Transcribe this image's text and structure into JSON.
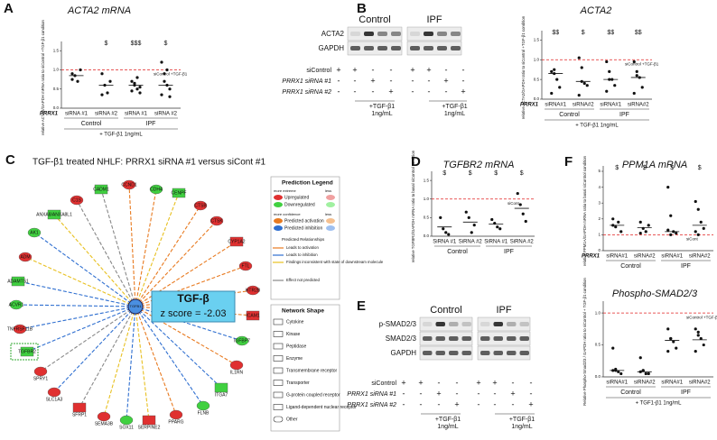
{
  "chart_data": [
    {
      "type": "dot",
      "label": "A",
      "title": "ACTA2 mRNA",
      "ylabel": "relative ACTA2/GAPDH mRNA ratio to siControl +TGF-β1 condition",
      "row_label": "PRRX1",
      "categories": [
        "siRNA #1",
        "siRNA #2",
        "siRNA #1",
        "siRNA #2"
      ],
      "groups": [
        "Control",
        "IPF"
      ],
      "footnote": "+ TGF-β1 1ng/mL",
      "ylim": [
        0,
        1.6
      ],
      "yticks": [
        {
          "value": 0,
          "label": "0.0"
        },
        {
          "value": 0.5,
          "label": "0.5"
        },
        {
          "value": 1,
          "label": "1.0"
        },
        {
          "value": 1.5,
          "label": "1.5"
        }
      ],
      "values": [
        [
          0.9,
          0.85,
          0.7,
          1.0,
          0.75
        ],
        [
          0.9,
          0.6,
          0.4,
          0.7,
          0.35
        ],
        [
          0.7,
          0.6,
          0.5,
          0.55,
          0.45,
          0.65,
          0.8,
          0.4
        ],
        [
          1.2,
          0.9,
          0.6,
          0.5,
          0.35,
          0.7,
          1.0,
          0.3
        ]
      ],
      "medians": [
        0.85,
        0.6,
        0.6,
        0.6
      ],
      "significance": [
        null,
        "$",
        "$$$",
        "$"
      ],
      "ref_line": {
        "value": 1,
        "label": "siControl +TGF-β1",
        "color": "#e02020"
      },
      "color": "#111"
    },
    {
      "type": "dot",
      "title": "ACTA2",
      "ylabel": "relative ACTA2/GAPDH ratio to siControl +TGF-β1 condition",
      "row_label": "PRRX1",
      "categories": [
        "siRNA#1",
        "siRNA#2",
        "siRNA#1",
        "siRNA#2"
      ],
      "groups": [
        "Control",
        "IPF"
      ],
      "footnote": "+ TGF-β1 1ng/mL",
      "ylim": [
        0,
        1.6
      ],
      "yticks": [
        {
          "value": 0,
          "label": "0.0"
        },
        {
          "value": 0.5,
          "label": "0.5"
        },
        {
          "value": 1,
          "label": "1.0"
        },
        {
          "value": 1.5,
          "label": "1.5"
        }
      ],
      "values": [
        [
          0.7,
          0.75,
          0.5,
          0.3,
          0.15,
          0.65
        ],
        [
          1.05,
          0.8,
          0.4,
          0.35,
          0.1,
          0.45
        ],
        [
          0.95,
          0.7,
          0.5,
          0.35,
          0.2,
          0.5
        ],
        [
          0.95,
          0.7,
          0.55,
          0.3,
          0.15,
          0.6
        ]
      ],
      "medians": [
        0.65,
        0.45,
        0.5,
        0.55
      ],
      "significance": [
        "$$",
        "$",
        "$$",
        "$$"
      ],
      "ref_line": {
        "value": 1,
        "label": "siControl +TGF-β1",
        "color": "#e02020"
      },
      "color": "#111"
    },
    {
      "type": "dot",
      "label": "D",
      "title": "TGFBR2 mRNA",
      "ylabel": "relative TGFBR2/GAPDH mRNA ratio to basal siControl condition",
      "categories": [
        "SiRNA #1",
        "SiRNA #2",
        "SiRNA #1",
        "SiRNA #2"
      ],
      "groups": [
        "Control",
        "IPF"
      ],
      "ylim": [
        0,
        1.6
      ],
      "yticks": [
        {
          "value": 0,
          "label": "0.0"
        },
        {
          "value": 0.5,
          "label": "0.5"
        },
        {
          "value": 1,
          "label": "1.0"
        },
        {
          "value": 1.5,
          "label": "1.5"
        }
      ],
      "values": [
        [
          0.5,
          0.2,
          0.1,
          0.05
        ],
        [
          0.65,
          0.5,
          0.1,
          0.3
        ],
        [
          0.45,
          0.35,
          0.25,
          0.2
        ],
        [
          1.15,
          0.85,
          0.6,
          0.4
        ]
      ],
      "medians": [
        0.25,
        0.38,
        0.33,
        0.75
      ],
      "significance": [
        "$",
        "$",
        "$",
        "$"
      ],
      "ref_line": {
        "value": 1,
        "label": "siCont",
        "color": "#e02020"
      },
      "color": "#111"
    },
    {
      "type": "dot",
      "label": "F",
      "title": "PPM1A mRNA",
      "ylabel": "relative PPM1A/GAPDH mRNA ratio to basal siControl condition",
      "row_label": "PRRX1",
      "categories": [
        "siRNA#1",
        "siRNA#2",
        "siRNA#1",
        "siRNA#2"
      ],
      "groups": [
        "Control",
        "IPF"
      ],
      "ylim": [
        0,
        5
      ],
      "yticks": [
        0,
        1,
        2,
        3,
        4,
        5
      ],
      "values": [
        [
          2,
          1.5,
          1.8,
          1.2,
          1.6
        ],
        [
          1.8,
          1.4,
          1.2,
          1.6,
          1.1
        ],
        [
          4,
          2.2,
          1.2,
          1.1,
          1.3,
          1.0
        ],
        [
          3.1,
          2.6,
          1.8,
          1.4,
          1.2,
          1.0
        ]
      ],
      "medians": [
        1.6,
        1.45,
        1.2,
        1.6
      ],
      "significance": [
        "$",
        "$",
        "$",
        "$"
      ],
      "ref_line": {
        "value": 1,
        "label": "siCont",
        "color": "#e02020"
      },
      "color": "#111"
    },
    {
      "type": "dot",
      "title": "Phospho-SMAD2/3",
      "ylabel": "Relative Phospho-Smad2/3 / GAPDH ratio to siControl + TGF-β1 condition",
      "categories": [
        "siRNA#1",
        "siRNA#2",
        "siRNA#1",
        "siRNA#2"
      ],
      "groups": [
        "Control",
        "IPF"
      ],
      "footnote": "+ TGF1-β1 1ng/mL",
      "ylim": [
        0,
        1.1
      ],
      "yticks": [
        {
          "value": 0,
          "label": "0.0"
        },
        {
          "value": 0.5,
          "label": "0.5"
        },
        {
          "value": 1,
          "label": "1.0"
        }
      ],
      "values": [
        [
          0.45,
          0.12,
          0.08,
          0.05,
          0.1,
          0.1
        ],
        [
          0.3,
          0.1,
          0.05,
          0.05,
          0.08,
          0.1
        ],
        [
          0.75,
          0.6,
          0.55,
          0.45,
          0.4,
          0.6
        ],
        [
          0.75,
          0.65,
          0.6,
          0.5,
          0.4,
          0.7
        ]
      ],
      "medians": [
        0.1,
        0.08,
        0.57,
        0.58
      ],
      "significance": [
        null,
        null,
        null,
        null
      ],
      "ref_line": {
        "value": 1,
        "label": "siControl +TGF-β1",
        "color": "#e02020"
      },
      "color": "#111"
    }
  ],
  "blots": [
    {
      "label": "B",
      "conditions": [
        "Control",
        "IPF"
      ],
      "proteins": [
        "ACTA2",
        "GAPDH"
      ],
      "row_labels": [
        "siControl",
        "PRRX1 siRNA #1",
        "PRRX1 siRNA #2"
      ],
      "signs": [
        [
          "+",
          "+",
          "-",
          "-",
          "+",
          "+",
          "-",
          "-"
        ],
        [
          "-",
          "-",
          "+",
          "-",
          "-",
          "-",
          "+",
          "-"
        ],
        [
          "-",
          "-",
          "-",
          "+",
          "-",
          "-",
          "-",
          "+"
        ]
      ],
      "treatment": [
        "+TGF-β1",
        "1ng/mL"
      ]
    },
    {
      "label": "E",
      "conditions": [
        "Control",
        "IPF"
      ],
      "proteins": [
        "p-SMAD2/3",
        "SMAD2/3",
        "GAPDH"
      ],
      "row_labels": [
        "siControl",
        "PRRX1 siRNA #1",
        "PRRX1 siRNA #2"
      ],
      "signs": [
        [
          "+",
          "+",
          "-",
          "-",
          "+",
          "+",
          "-",
          "-"
        ],
        [
          "-",
          "-",
          "+",
          "-",
          "-",
          "-",
          "+",
          "-"
        ],
        [
          "-",
          "-",
          "-",
          "+",
          "-",
          "-",
          "-",
          "+"
        ]
      ],
      "treatment": [
        "+TGF-β1",
        "1ng/mL"
      ]
    }
  ],
  "network": {
    "label": "C",
    "title": "TGF-β1 treated NHLF: PRRX1 siRNA #1 versus siCont #1",
    "hub": "TGFB1",
    "callout": [
      "TGF-β",
      "z score = -2.03"
    ],
    "nodes": [
      {
        "label": "CADM1",
        "reg": "down",
        "rel": "not"
      },
      {
        "label": "CCND1",
        "reg": "up",
        "rel": "act"
      },
      {
        "label": "CDH4",
        "reg": "down",
        "rel": "act"
      },
      {
        "label": "CENPF",
        "reg": "down",
        "rel": "inc"
      },
      {
        "label": "CTSB",
        "reg": "up",
        "rel": "act"
      },
      {
        "label": "CTSK",
        "reg": "up",
        "rel": "act"
      },
      {
        "label": "CYP1A2",
        "reg": "up",
        "rel": "act"
      },
      {
        "label": "FTL",
        "reg": "up",
        "rel": "act"
      },
      {
        "label": "HTR2B",
        "reg": "up",
        "rel": "act"
      },
      {
        "label": "ICAM1",
        "reg": "up",
        "rel": "act"
      },
      {
        "label": "IGFBP7",
        "reg": "down",
        "rel": "inh"
      },
      {
        "label": "IL1RN",
        "reg": "up",
        "rel": "act"
      },
      {
        "label": "ITGA7",
        "reg": "down",
        "rel": "inh"
      },
      {
        "label": "FLNB",
        "reg": "down",
        "rel": "inh"
      },
      {
        "label": "PPARG",
        "reg": "up",
        "rel": "act"
      },
      {
        "label": "SERPINE2",
        "reg": "up",
        "rel": "inc"
      },
      {
        "label": "SOX11",
        "reg": "down",
        "rel": "inh"
      },
      {
        "label": "SEMA3B",
        "reg": "up",
        "rel": "inc"
      },
      {
        "label": "SFRP1",
        "reg": "up",
        "rel": "not"
      },
      {
        "label": "SLC1A3",
        "reg": "up",
        "rel": "inh"
      },
      {
        "label": "SPRY1",
        "reg": "up",
        "rel": "not"
      },
      {
        "label": "TGFBR2",
        "reg": "down",
        "rel": "inh"
      },
      {
        "label": "TNFRSF11B",
        "reg": "up",
        "rel": "inh"
      },
      {
        "label": "ACVR1",
        "reg": "down",
        "rel": "inh"
      },
      {
        "label": "ADAMTS1",
        "reg": "down",
        "rel": "inh"
      },
      {
        "label": "ADM",
        "reg": "up",
        "rel": "inc"
      },
      {
        "label": "AK1",
        "reg": "down",
        "rel": "inh"
      },
      {
        "label": "ANXA8/ANXA8L1",
        "reg": "down",
        "rel": "inc"
      },
      {
        "label": "C1S",
        "reg": "up",
        "rel": "not"
      }
    ],
    "prediction_legend": {
      "title": "Prediction Legend",
      "extreme": "more extreme",
      "less": "less",
      "confidence": "more confidence",
      "up": "Upregulated",
      "down": "Downregulated",
      "act": "Predicted activation",
      "inh": "Predicted inhibition",
      "relationships": "Predicted Relationships",
      "rels": [
        "Leads to activation",
        "Leads to inhibition",
        "Findings inconsistent with state of downstream molecule",
        "Effect not predicted"
      ]
    },
    "shape_legend": {
      "title": "Network Shape",
      "items": [
        "Cytokine",
        "Kinase",
        "Peptidase",
        "Enzyme",
        "Transmembrane receptor",
        "Transporter",
        "G-protein coupled receptor",
        "Ligand-dependent nuclear receptor",
        "Other"
      ]
    }
  }
}
